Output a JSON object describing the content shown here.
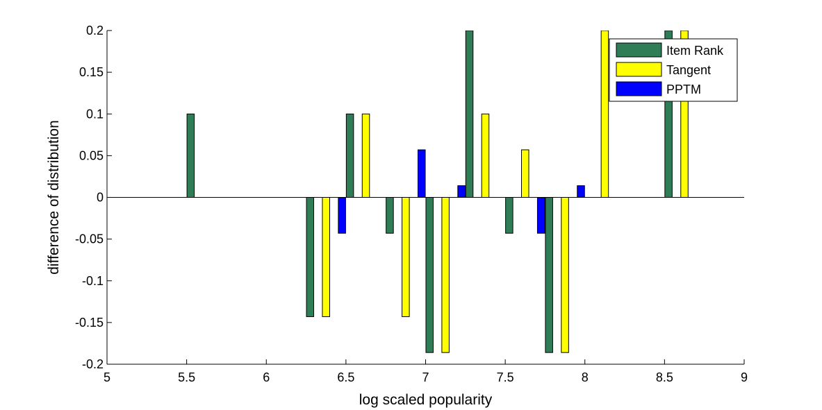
{
  "chart_data": {
    "type": "bar",
    "title": "",
    "xlabel": "log scaled popularity",
    "ylabel": "difference of distribution",
    "xlim": [
      5,
      9
    ],
    "ylim": [
      -0.2,
      0.2
    ],
    "xticks": [
      "5",
      "5.5",
      "6",
      "6.5",
      "7",
      "7.5",
      "8",
      "8.5",
      "9"
    ],
    "yticks": [
      "-0.2",
      "-0.15",
      "-0.1",
      "-0.05",
      "0",
      "0.05",
      "0.1",
      "0.15",
      "0.2"
    ],
    "grid": false,
    "legend_position": "top-right",
    "x": [
      5.625,
      6.375,
      6.625,
      6.875,
      7.125,
      7.375,
      7.625,
      7.875,
      8.125,
      8.625
    ],
    "series": [
      {
        "name": "Item Rank",
        "color": "#2e7d57",
        "values": [
          0.1,
          -0.143,
          0.1,
          -0.043,
          -0.186,
          0.2,
          -0.043,
          -0.186,
          0,
          0.2
        ]
      },
      {
        "name": "Tangent",
        "color": "#ffff00",
        "values": [
          0,
          -0.143,
          0.1,
          -0.143,
          -0.186,
          0.1,
          0.057,
          -0.186,
          0.2,
          0.2
        ]
      },
      {
        "name": "PPTM",
        "color": "#0000ff",
        "values": [
          0,
          -0.043,
          0,
          0.057,
          0.014,
          0,
          -0.043,
          0.014,
          0,
          0
        ]
      }
    ]
  }
}
